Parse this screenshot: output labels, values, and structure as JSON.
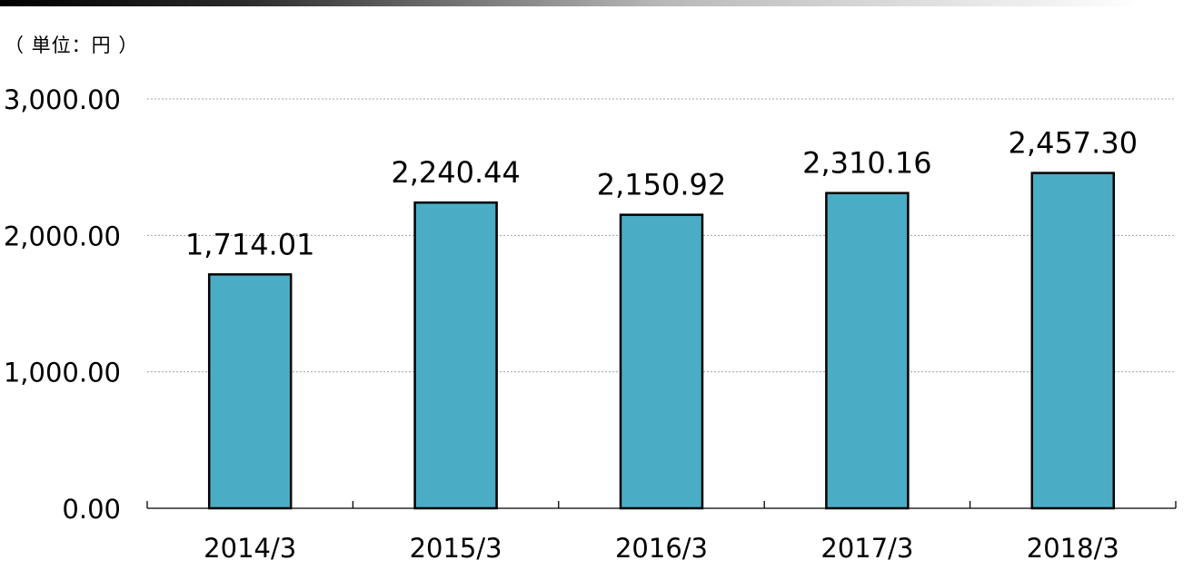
{
  "unit_label": "（ 単位：円 ）",
  "colors": {
    "bar": "#4BACC6",
    "axis": "#000000",
    "grid": "#a0a0a0"
  },
  "chart_data": {
    "type": "bar",
    "categories": [
      "2014/3",
      "2015/3",
      "2016/3",
      "2017/3",
      "2018/3"
    ],
    "values": [
      1714.01,
      2240.44,
      2150.92,
      2310.16,
      2457.3
    ],
    "data_labels": [
      "1,714.01",
      "2,240.44",
      "2,150.92",
      "2,310.16",
      "2,457.30"
    ],
    "yticks": [
      0,
      1000,
      2000,
      3000
    ],
    "ytick_labels": [
      "0.00",
      "1,000.00",
      "2,000.00",
      "3,000.00"
    ],
    "ylim": [
      0,
      3000
    ],
    "grid": true,
    "title": "",
    "xlabel": "",
    "ylabel": ""
  }
}
